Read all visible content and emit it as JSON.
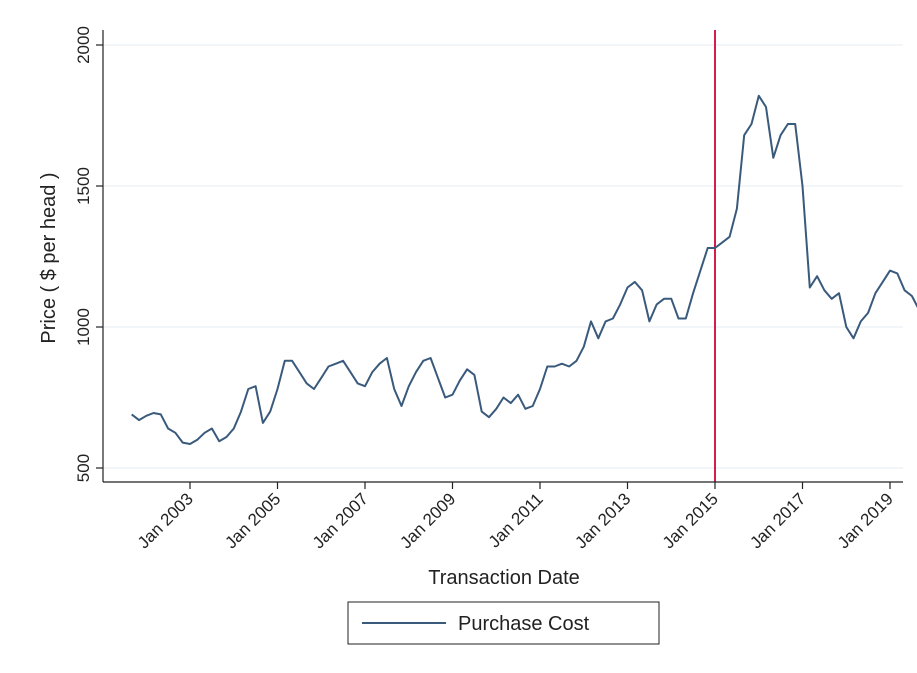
{
  "chart_data": {
    "type": "line",
    "xlabel": "Transaction Date",
    "ylabel": "Price ( $ per head )",
    "ylim": [
      500,
      2000
    ],
    "xlim": [
      "2001-06",
      "2019-02"
    ],
    "yticks": [
      "500",
      "1000",
      "1500",
      "2000"
    ],
    "xticks": [
      {
        "date": "2003-01",
        "label": "Jan 2003"
      },
      {
        "date": "2005-01",
        "label": "Jan 2005"
      },
      {
        "date": "2007-01",
        "label": "Jan 2007"
      },
      {
        "date": "2009-01",
        "label": "Jan 2009"
      },
      {
        "date": "2011-01",
        "label": "Jan 2011"
      },
      {
        "date": "2013-01",
        "label": "Jan 2013"
      },
      {
        "date": "2015-01",
        "label": "Jan 2015"
      },
      {
        "date": "2017-01",
        "label": "Jan 2017"
      },
      {
        "date": "2019-01",
        "label": "Jan 2019"
      }
    ],
    "grid": true,
    "legend_position": "bottom",
    "reference_line": {
      "date": "2015-01",
      "color": "#d21e4b"
    },
    "series": [
      {
        "name": "Purchase Cost",
        "color": "#3a5a7c",
        "points": [
          [
            "2001-09",
            690
          ],
          [
            "2001-11",
            670
          ],
          [
            "2002-01",
            685
          ],
          [
            "2002-03",
            695
          ],
          [
            "2002-05",
            690
          ],
          [
            "2002-07",
            640
          ],
          [
            "2002-09",
            625
          ],
          [
            "2002-11",
            590
          ],
          [
            "2003-01",
            585
          ],
          [
            "2003-03",
            600
          ],
          [
            "2003-05",
            625
          ],
          [
            "2003-07",
            640
          ],
          [
            "2003-09",
            595
          ],
          [
            "2003-11",
            610
          ],
          [
            "2004-01",
            640
          ],
          [
            "2004-03",
            700
          ],
          [
            "2004-05",
            780
          ],
          [
            "2004-07",
            790
          ],
          [
            "2004-09",
            660
          ],
          [
            "2004-11",
            700
          ],
          [
            "2005-01",
            780
          ],
          [
            "2005-03",
            880
          ],
          [
            "2005-05",
            880
          ],
          [
            "2005-07",
            840
          ],
          [
            "2005-09",
            800
          ],
          [
            "2005-11",
            780
          ],
          [
            "2006-01",
            820
          ],
          [
            "2006-03",
            860
          ],
          [
            "2006-05",
            870
          ],
          [
            "2006-07",
            880
          ],
          [
            "2006-09",
            840
          ],
          [
            "2006-11",
            800
          ],
          [
            "2007-01",
            790
          ],
          [
            "2007-03",
            840
          ],
          [
            "2007-05",
            870
          ],
          [
            "2007-07",
            890
          ],
          [
            "2007-09",
            780
          ],
          [
            "2007-11",
            720
          ],
          [
            "2008-01",
            790
          ],
          [
            "2008-03",
            840
          ],
          [
            "2008-05",
            880
          ],
          [
            "2008-07",
            890
          ],
          [
            "2008-09",
            820
          ],
          [
            "2008-11",
            750
          ],
          [
            "2009-01",
            760
          ],
          [
            "2009-03",
            810
          ],
          [
            "2009-05",
            850
          ],
          [
            "2009-07",
            830
          ],
          [
            "2009-09",
            700
          ],
          [
            "2009-11",
            680
          ],
          [
            "2010-01",
            710
          ],
          [
            "2010-03",
            750
          ],
          [
            "2010-05",
            730
          ],
          [
            "2010-07",
            760
          ],
          [
            "2010-09",
            710
          ],
          [
            "2010-11",
            720
          ],
          [
            "2011-01",
            780
          ],
          [
            "2011-03",
            860
          ],
          [
            "2011-05",
            860
          ],
          [
            "2011-07",
            870
          ],
          [
            "2011-09",
            860
          ],
          [
            "2011-11",
            880
          ],
          [
            "2012-01",
            930
          ],
          [
            "2012-03",
            1020
          ],
          [
            "2012-05",
            960
          ],
          [
            "2012-07",
            1020
          ],
          [
            "2012-09",
            1030
          ],
          [
            "2012-11",
            1080
          ],
          [
            "2013-01",
            1140
          ],
          [
            "2013-03",
            1160
          ],
          [
            "2013-05",
            1130
          ],
          [
            "2013-07",
            1020
          ],
          [
            "2013-09",
            1080
          ],
          [
            "2013-11",
            1100
          ],
          [
            "2014-01",
            1100
          ],
          [
            "2014-03",
            1030
          ],
          [
            "2014-05",
            1030
          ],
          [
            "2014-07",
            1120
          ],
          [
            "2014-09",
            1200
          ],
          [
            "2014-11",
            1280
          ],
          [
            "2015-01",
            1280
          ],
          [
            "2015-03",
            1300
          ],
          [
            "2015-05",
            1320
          ],
          [
            "2015-07",
            1420
          ],
          [
            "2015-09",
            1680
          ],
          [
            "2015-11",
            1720
          ],
          [
            "2016-01",
            1820
          ],
          [
            "2016-03",
            1780
          ],
          [
            "2016-05",
            1600
          ],
          [
            "2016-07",
            1680
          ],
          [
            "2016-09",
            1720
          ],
          [
            "2016-11",
            1720
          ],
          [
            "2017-01",
            1500
          ],
          [
            "2017-03",
            1140
          ],
          [
            "2017-05",
            1180
          ],
          [
            "2017-07",
            1130
          ],
          [
            "2017-09",
            1100
          ],
          [
            "2017-11",
            1120
          ],
          [
            "2018-01",
            1000
          ],
          [
            "2018-03",
            960
          ],
          [
            "2018-05",
            1020
          ],
          [
            "2018-07",
            1050
          ],
          [
            "2018-09",
            1120
          ],
          [
            "2018-11",
            1160
          ],
          [
            "2019-01",
            1200
          ],
          [
            "2019-03",
            1190
          ],
          [
            "2019-05",
            1130
          ],
          [
            "2019-07",
            1110
          ],
          [
            "2019-09",
            1060
          ]
        ]
      }
    ]
  }
}
